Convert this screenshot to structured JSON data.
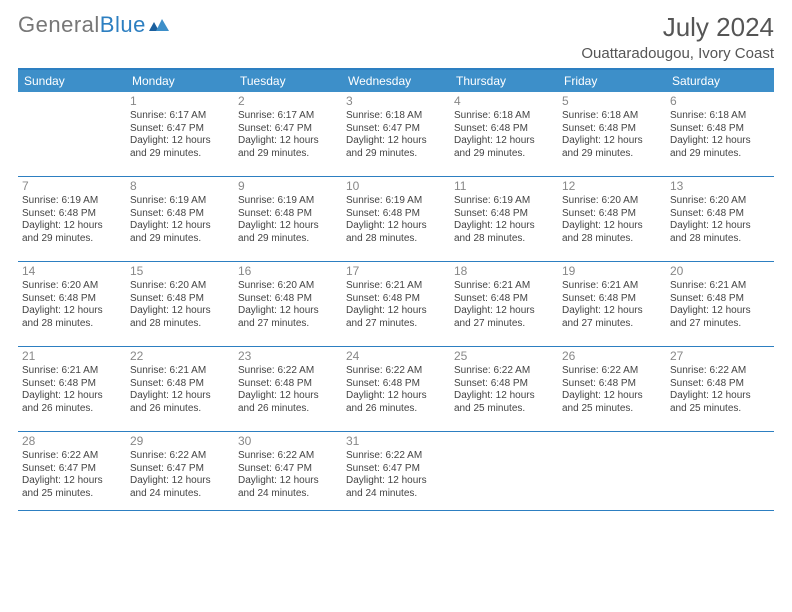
{
  "logo": {
    "text1": "General",
    "text2": "Blue"
  },
  "title": "July 2024",
  "location": "Ouattaradougou, Ivory Coast",
  "colors": {
    "header_bg": "#3d8fc9",
    "header_border": "#2d7fc1",
    "text": "#444444",
    "daynum": "#888888",
    "logo_gray": "#777777",
    "logo_blue": "#2d7fc1"
  },
  "day_labels": [
    "Sunday",
    "Monday",
    "Tuesday",
    "Wednesday",
    "Thursday",
    "Friday",
    "Saturday"
  ],
  "weeks": [
    [
      null,
      {
        "n": "1",
        "sr": "6:17 AM",
        "ss": "6:47 PM",
        "dl": "12 hours and 29 minutes."
      },
      {
        "n": "2",
        "sr": "6:17 AM",
        "ss": "6:47 PM",
        "dl": "12 hours and 29 minutes."
      },
      {
        "n": "3",
        "sr": "6:18 AM",
        "ss": "6:47 PM",
        "dl": "12 hours and 29 minutes."
      },
      {
        "n": "4",
        "sr": "6:18 AM",
        "ss": "6:48 PM",
        "dl": "12 hours and 29 minutes."
      },
      {
        "n": "5",
        "sr": "6:18 AM",
        "ss": "6:48 PM",
        "dl": "12 hours and 29 minutes."
      },
      {
        "n": "6",
        "sr": "6:18 AM",
        "ss": "6:48 PM",
        "dl": "12 hours and 29 minutes."
      }
    ],
    [
      {
        "n": "7",
        "sr": "6:19 AM",
        "ss": "6:48 PM",
        "dl": "12 hours and 29 minutes."
      },
      {
        "n": "8",
        "sr": "6:19 AM",
        "ss": "6:48 PM",
        "dl": "12 hours and 29 minutes."
      },
      {
        "n": "9",
        "sr": "6:19 AM",
        "ss": "6:48 PM",
        "dl": "12 hours and 29 minutes."
      },
      {
        "n": "10",
        "sr": "6:19 AM",
        "ss": "6:48 PM",
        "dl": "12 hours and 28 minutes."
      },
      {
        "n": "11",
        "sr": "6:19 AM",
        "ss": "6:48 PM",
        "dl": "12 hours and 28 minutes."
      },
      {
        "n": "12",
        "sr": "6:20 AM",
        "ss": "6:48 PM",
        "dl": "12 hours and 28 minutes."
      },
      {
        "n": "13",
        "sr": "6:20 AM",
        "ss": "6:48 PM",
        "dl": "12 hours and 28 minutes."
      }
    ],
    [
      {
        "n": "14",
        "sr": "6:20 AM",
        "ss": "6:48 PM",
        "dl": "12 hours and 28 minutes."
      },
      {
        "n": "15",
        "sr": "6:20 AM",
        "ss": "6:48 PM",
        "dl": "12 hours and 28 minutes."
      },
      {
        "n": "16",
        "sr": "6:20 AM",
        "ss": "6:48 PM",
        "dl": "12 hours and 27 minutes."
      },
      {
        "n": "17",
        "sr": "6:21 AM",
        "ss": "6:48 PM",
        "dl": "12 hours and 27 minutes."
      },
      {
        "n": "18",
        "sr": "6:21 AM",
        "ss": "6:48 PM",
        "dl": "12 hours and 27 minutes."
      },
      {
        "n": "19",
        "sr": "6:21 AM",
        "ss": "6:48 PM",
        "dl": "12 hours and 27 minutes."
      },
      {
        "n": "20",
        "sr": "6:21 AM",
        "ss": "6:48 PM",
        "dl": "12 hours and 27 minutes."
      }
    ],
    [
      {
        "n": "21",
        "sr": "6:21 AM",
        "ss": "6:48 PM",
        "dl": "12 hours and 26 minutes."
      },
      {
        "n": "22",
        "sr": "6:21 AM",
        "ss": "6:48 PM",
        "dl": "12 hours and 26 minutes."
      },
      {
        "n": "23",
        "sr": "6:22 AM",
        "ss": "6:48 PM",
        "dl": "12 hours and 26 minutes."
      },
      {
        "n": "24",
        "sr": "6:22 AM",
        "ss": "6:48 PM",
        "dl": "12 hours and 26 minutes."
      },
      {
        "n": "25",
        "sr": "6:22 AM",
        "ss": "6:48 PM",
        "dl": "12 hours and 25 minutes."
      },
      {
        "n": "26",
        "sr": "6:22 AM",
        "ss": "6:48 PM",
        "dl": "12 hours and 25 minutes."
      },
      {
        "n": "27",
        "sr": "6:22 AM",
        "ss": "6:48 PM",
        "dl": "12 hours and 25 minutes."
      }
    ],
    [
      {
        "n": "28",
        "sr": "6:22 AM",
        "ss": "6:47 PM",
        "dl": "12 hours and 25 minutes."
      },
      {
        "n": "29",
        "sr": "6:22 AM",
        "ss": "6:47 PM",
        "dl": "12 hours and 24 minutes."
      },
      {
        "n": "30",
        "sr": "6:22 AM",
        "ss": "6:47 PM",
        "dl": "12 hours and 24 minutes."
      },
      {
        "n": "31",
        "sr": "6:22 AM",
        "ss": "6:47 PM",
        "dl": "12 hours and 24 minutes."
      },
      null,
      null,
      null
    ]
  ],
  "labels": {
    "sunrise": "Sunrise:",
    "sunset": "Sunset:",
    "daylight": "Daylight:"
  }
}
